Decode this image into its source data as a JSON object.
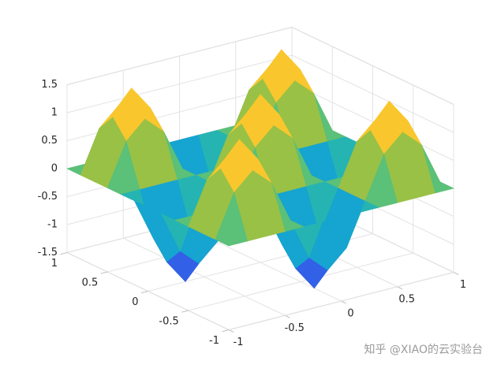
{
  "chart_data": {
    "type": "surface",
    "x": [
      -1,
      -0.8333,
      -0.6667,
      -0.5,
      -0.3333,
      -0.1667,
      0,
      0.1667,
      0.3333,
      0.5,
      0.6667,
      0.8333,
      1
    ],
    "y": [
      -1,
      -0.8333,
      -0.6667,
      -0.5,
      -0.3333,
      -0.1667,
      0,
      0.1667,
      0.3333,
      0.5,
      0.6667,
      0.8333,
      1
    ],
    "z": [
      [
        0,
        0,
        0,
        0,
        0,
        0,
        0,
        0,
        0,
        0,
        0,
        0,
        0
      ],
      [
        0,
        0.75,
        1.06,
        0.75,
        0,
        -0.75,
        -1.06,
        -0.75,
        0,
        0.75,
        1.06,
        0.75,
        0
      ],
      [
        0,
        1.06,
        1.5,
        1.06,
        0,
        -1.06,
        -1.5,
        -1.06,
        0,
        1.06,
        1.5,
        1.06,
        0
      ],
      [
        0,
        0.75,
        1.06,
        0.75,
        0,
        -0.75,
        -1.06,
        -0.75,
        0,
        0.75,
        1.06,
        0.75,
        0
      ],
      [
        0,
        0,
        0,
        0,
        0,
        0,
        0,
        0,
        0,
        0,
        0,
        0,
        0
      ],
      [
        0,
        -0.75,
        -1.06,
        -0.75,
        0,
        0.75,
        1.06,
        0.75,
        0,
        -0.75,
        -1.06,
        -0.75,
        0
      ],
      [
        0,
        -1.06,
        -1.5,
        -1.06,
        0,
        1.06,
        1.5,
        1.06,
        0,
        -1.06,
        -1.5,
        -1.06,
        0
      ],
      [
        0,
        -0.75,
        -1.06,
        -0.75,
        0,
        0.75,
        1.06,
        0.75,
        0,
        -0.75,
        -1.06,
        -0.75,
        0
      ],
      [
        0,
        0,
        0,
        0,
        0,
        0,
        0,
        0,
        0,
        0,
        0,
        0,
        0
      ],
      [
        0,
        0.75,
        1.06,
        0.75,
        0,
        -0.75,
        -1.06,
        -0.75,
        0,
        0.75,
        1.06,
        0.75,
        0
      ],
      [
        0,
        1.06,
        1.5,
        1.06,
        0,
        -1.06,
        -1.5,
        -1.06,
        0,
        1.06,
        1.5,
        1.06,
        0
      ],
      [
        0,
        0.75,
        1.06,
        0.75,
        0,
        -0.75,
        -1.06,
        -0.75,
        0,
        0.75,
        1.06,
        0.75,
        0
      ],
      [
        0,
        0,
        0,
        0,
        0,
        0,
        0,
        0,
        0,
        0,
        0,
        0,
        0
      ]
    ],
    "xlim": [
      -1,
      1
    ],
    "ylim": [
      -1,
      1
    ],
    "zlim": [
      -1.5,
      1.5
    ],
    "xticks": [
      -1,
      -0.5,
      0,
      0.5,
      1
    ],
    "yticks": [
      -1,
      -0.5,
      0,
      0.5,
      1
    ],
    "zticks": [
      -1.5,
      -1,
      -0.5,
      0,
      0.5,
      1,
      1.5
    ],
    "grid": true,
    "colormap": "parula",
    "watermark": "知乎 @XIAO的云实验台"
  }
}
